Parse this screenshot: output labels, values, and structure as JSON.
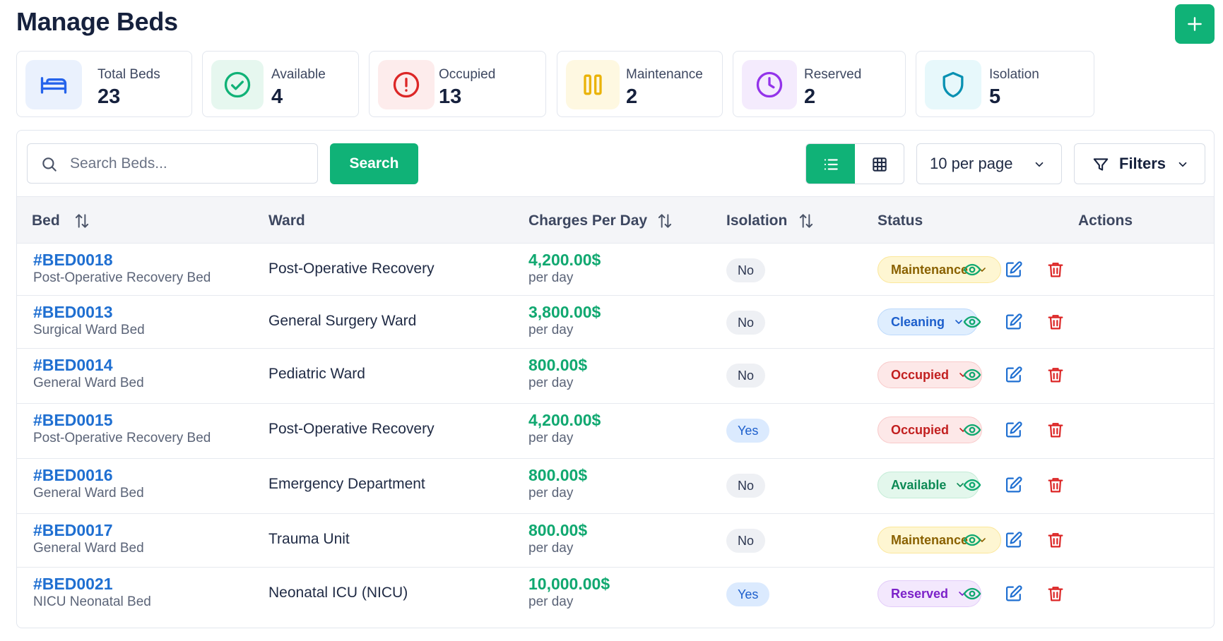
{
  "page": {
    "title": "Manage Beds"
  },
  "stats": [
    {
      "label": "Total Beds",
      "value": "23",
      "icon": "bed-icon",
      "color": "#2563eb",
      "bg": "#eaf1fd"
    },
    {
      "label": "Available",
      "value": "4",
      "icon": "check-circle-icon",
      "color": "#10b277",
      "bg": "#e6f7ef"
    },
    {
      "label": "Occupied",
      "value": "13",
      "icon": "alert-circle-icon",
      "color": "#dc2626",
      "bg": "#fdecec"
    },
    {
      "label": "Maintenance",
      "value": "2",
      "icon": "pause-icon",
      "color": "#eab308",
      "bg": "#fef8e1"
    },
    {
      "label": "Reserved",
      "value": "2",
      "icon": "clock-icon",
      "color": "#9333ea",
      "bg": "#f4ebfd"
    },
    {
      "label": "Isolation",
      "value": "5",
      "icon": "shield-icon",
      "color": "#0891b2",
      "bg": "#e7f8fb"
    }
  ],
  "toolbar": {
    "search_placeholder": "Search Beds...",
    "search_label": "Search",
    "per_page": "10 per page",
    "filters_label": "Filters"
  },
  "table": {
    "columns": {
      "bed": "Bed",
      "ward": "Ward",
      "charges": "Charges Per Day",
      "isolation": "Isolation",
      "status": "Status",
      "actions": "Actions"
    },
    "rows": [
      {
        "id": "#BED0018",
        "type": "Post-Operative Recovery Bed",
        "ward": "Post-Operative Recovery",
        "charge": "4,200.00$",
        "per": "per day",
        "isolation": "No",
        "status": "Maintenance"
      },
      {
        "id": "#BED0013",
        "type": "Surgical Ward Bed",
        "ward": "General Surgery Ward",
        "charge": "3,800.00$",
        "per": "per day",
        "isolation": "No",
        "status": "Cleaning"
      },
      {
        "id": "#BED0014",
        "type": "General Ward Bed",
        "ward": "Pediatric Ward",
        "charge": "800.00$",
        "per": "per day",
        "isolation": "No",
        "status": "Occupied"
      },
      {
        "id": "#BED0015",
        "type": "Post-Operative Recovery Bed",
        "ward": "Post-Operative Recovery",
        "charge": "4,200.00$",
        "per": "per day",
        "isolation": "Yes",
        "status": "Occupied"
      },
      {
        "id": "#BED0016",
        "type": "General Ward Bed",
        "ward": "Emergency Department",
        "charge": "800.00$",
        "per": "per day",
        "isolation": "No",
        "status": "Available"
      },
      {
        "id": "#BED0017",
        "type": "General Ward Bed",
        "ward": "Trauma Unit",
        "charge": "800.00$",
        "per": "per day",
        "isolation": "No",
        "status": "Maintenance"
      },
      {
        "id": "#BED0021",
        "type": "NICU Neonatal Bed",
        "ward": "Neonatal ICU (NICU)",
        "charge": "10,000.00$",
        "per": "per day",
        "isolation": "Yes",
        "status": "Reserved"
      }
    ]
  },
  "status_colors": {
    "Maintenance": {
      "bg": "#fef6d2",
      "fg": "#8a6100",
      "border": "#fbe79b"
    },
    "Cleaning": {
      "bg": "#dfeefe",
      "fg": "#1d5fcc",
      "border": "#bcd9fb"
    },
    "Occupied": {
      "bg": "#fde8e8",
      "fg": "#c21f1f",
      "border": "#f8c9c9"
    },
    "Available": {
      "bg": "#e3f7ec",
      "fg": "#0d8a55",
      "border": "#c3ecd6"
    },
    "Reserved": {
      "bg": "#f3e8fd",
      "fg": "#7c22c9",
      "border": "#e2cbf9"
    }
  },
  "action_colors": {
    "view": "#10a870",
    "edit": "#1f6fd1",
    "delete": "#dc2626"
  },
  "accent": "#10b277"
}
